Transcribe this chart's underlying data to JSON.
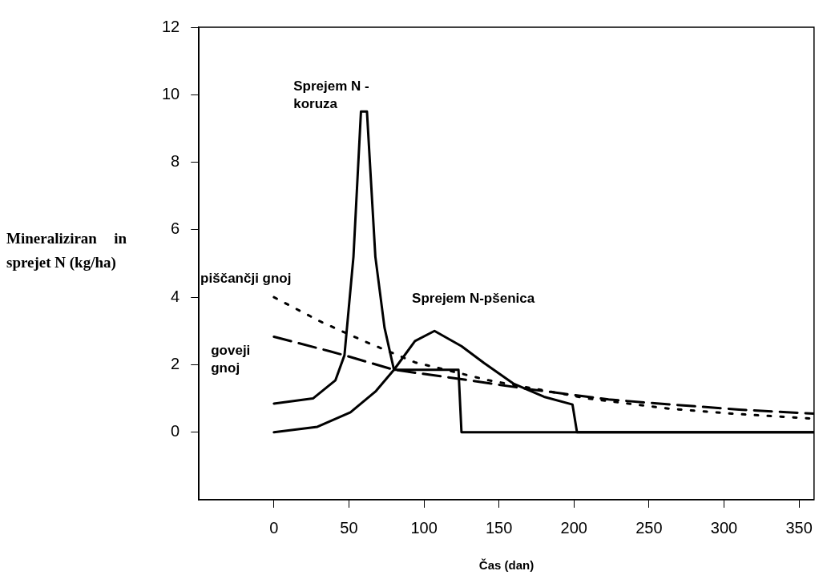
{
  "chart_data": {
    "type": "line",
    "xlabel": "Čas (dan)",
    "ylabel": "Mineraliziran in sprejet N (kg/ha)",
    "xlim": [
      -50,
      360
    ],
    "ylim": [
      -2,
      12
    ],
    "xticks": [
      0,
      50,
      100,
      150,
      200,
      250,
      300,
      350
    ],
    "yticks": [
      0,
      2,
      4,
      6,
      8,
      10,
      12
    ],
    "grid": false,
    "series": [
      {
        "name": "Sprejem N - koruza",
        "color": "#000000",
        "line_style": "solid",
        "x": [
          0,
          26,
          41,
          47,
          53,
          58,
          62,
          67.6,
          73.7,
          80,
          123,
          125,
          360
        ],
        "values": [
          0.85,
          1.0,
          1.54,
          2.28,
          5.2,
          9.5,
          9.5,
          5.2,
          3.1,
          1.85,
          1.85,
          0,
          0
        ]
      },
      {
        "name": "Sprejem N-pšenica",
        "color": "#000000",
        "line_style": "solid",
        "x": [
          0,
          29,
          51,
          68,
          80,
          94,
          107,
          125,
          140,
          160,
          180,
          199,
          202,
          360
        ],
        "values": [
          0,
          0.16,
          0.59,
          1.22,
          1.85,
          2.7,
          3.0,
          2.55,
          2.05,
          1.43,
          1.05,
          0.82,
          0,
          0
        ]
      },
      {
        "name": "piščančji gnoj",
        "color": "#000000",
        "line_style": "dotted",
        "x": [
          0,
          31,
          60,
          94,
          143,
          209,
          263,
          305,
          360
        ],
        "values": [
          4.0,
          3.28,
          2.7,
          2.07,
          1.54,
          1.0,
          0.7,
          0.55,
          0.4
        ]
      },
      {
        "name": "goveji gnoj",
        "color": "#000000",
        "line_style": "dashed",
        "x": [
          0,
          37,
          47,
          80,
          130,
          171,
          223,
          265,
          310,
          360
        ],
        "values": [
          2.83,
          2.4,
          2.28,
          1.85,
          1.54,
          1.27,
          0.97,
          0.82,
          0.67,
          0.55
        ]
      }
    ]
  }
}
